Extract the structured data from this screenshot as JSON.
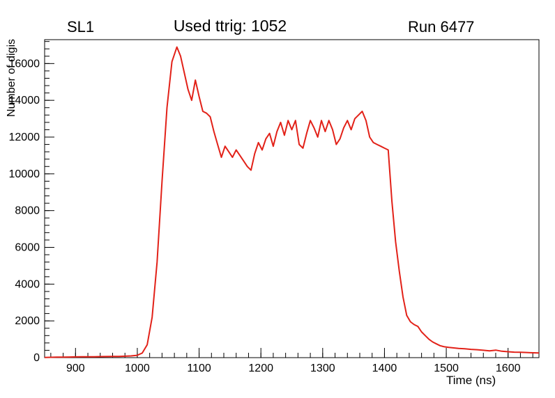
{
  "header": {
    "left": "SL1",
    "center": "Used ttrig: 1052",
    "right": "Run 6477"
  },
  "chart_data": {
    "type": "line",
    "title": "Used ttrig: 1052",
    "subtitle_left": "SL1",
    "subtitle_right": "Run 6477",
    "xlabel": "Time (ns)",
    "ylabel": "Number of digis",
    "xlim": [
      850,
      1650
    ],
    "ylim": [
      0,
      17300
    ],
    "x_major_ticks": [
      900,
      1000,
      1100,
      1200,
      1300,
      1400,
      1500,
      1600
    ],
    "y_major_ticks": [
      0,
      2000,
      4000,
      6000,
      8000,
      10000,
      12000,
      14000,
      16000
    ],
    "x_minor_step": 20,
    "y_minor_step": 400,
    "grid": false,
    "legend": "none",
    "line_color": "#e22118",
    "axis_color": "#000000",
    "series": [
      {
        "name": "digis",
        "points": [
          [
            850,
            10
          ],
          [
            860,
            20
          ],
          [
            870,
            25
          ],
          [
            880,
            30
          ],
          [
            890,
            35
          ],
          [
            900,
            40
          ],
          [
            910,
            45
          ],
          [
            920,
            50
          ],
          [
            930,
            50
          ],
          [
            940,
            55
          ],
          [
            950,
            60
          ],
          [
            960,
            65
          ],
          [
            970,
            70
          ],
          [
            980,
            80
          ],
          [
            990,
            95
          ],
          [
            1000,
            130
          ],
          [
            1008,
            250
          ],
          [
            1016,
            700
          ],
          [
            1024,
            2200
          ],
          [
            1032,
            5200
          ],
          [
            1040,
            9600
          ],
          [
            1048,
            13600
          ],
          [
            1056,
            16100
          ],
          [
            1064,
            16900
          ],
          [
            1070,
            16400
          ],
          [
            1076,
            15500
          ],
          [
            1082,
            14600
          ],
          [
            1088,
            14000
          ],
          [
            1094,
            15100
          ],
          [
            1100,
            14200
          ],
          [
            1106,
            13400
          ],
          [
            1112,
            13300
          ],
          [
            1118,
            13100
          ],
          [
            1124,
            12300
          ],
          [
            1130,
            11600
          ],
          [
            1136,
            10900
          ],
          [
            1142,
            11500
          ],
          [
            1148,
            11200
          ],
          [
            1154,
            10900
          ],
          [
            1160,
            11300
          ],
          [
            1166,
            11000
          ],
          [
            1172,
            10700
          ],
          [
            1178,
            10400
          ],
          [
            1184,
            10200
          ],
          [
            1190,
            11100
          ],
          [
            1196,
            11700
          ],
          [
            1202,
            11300
          ],
          [
            1208,
            11900
          ],
          [
            1214,
            12200
          ],
          [
            1220,
            11500
          ],
          [
            1226,
            12300
          ],
          [
            1232,
            12800
          ],
          [
            1238,
            12100
          ],
          [
            1244,
            12900
          ],
          [
            1250,
            12400
          ],
          [
            1256,
            12900
          ],
          [
            1262,
            11600
          ],
          [
            1268,
            11400
          ],
          [
            1274,
            12200
          ],
          [
            1280,
            12900
          ],
          [
            1286,
            12500
          ],
          [
            1292,
            12000
          ],
          [
            1298,
            12900
          ],
          [
            1304,
            12300
          ],
          [
            1310,
            12900
          ],
          [
            1316,
            12400
          ],
          [
            1322,
            11600
          ],
          [
            1328,
            11900
          ],
          [
            1334,
            12500
          ],
          [
            1340,
            12900
          ],
          [
            1346,
            12400
          ],
          [
            1352,
            13000
          ],
          [
            1358,
            13200
          ],
          [
            1364,
            13400
          ],
          [
            1370,
            12900
          ],
          [
            1376,
            12000
          ],
          [
            1382,
            11700
          ],
          [
            1388,
            11600
          ],
          [
            1394,
            11500
          ],
          [
            1400,
            11400
          ],
          [
            1406,
            11300
          ],
          [
            1412,
            8500
          ],
          [
            1418,
            6300
          ],
          [
            1424,
            4700
          ],
          [
            1430,
            3300
          ],
          [
            1436,
            2300
          ],
          [
            1442,
            1950
          ],
          [
            1448,
            1800
          ],
          [
            1454,
            1700
          ],
          [
            1460,
            1400
          ],
          [
            1466,
            1200
          ],
          [
            1472,
            1000
          ],
          [
            1478,
            850
          ],
          [
            1484,
            750
          ],
          [
            1490,
            650
          ],
          [
            1496,
            600
          ],
          [
            1504,
            560
          ],
          [
            1512,
            530
          ],
          [
            1520,
            500
          ],
          [
            1530,
            480
          ],
          [
            1540,
            450
          ],
          [
            1550,
            430
          ],
          [
            1560,
            400
          ],
          [
            1570,
            370
          ],
          [
            1580,
            410
          ],
          [
            1590,
            350
          ],
          [
            1600,
            320
          ],
          [
            1610,
            300
          ],
          [
            1620,
            290
          ],
          [
            1630,
            280
          ],
          [
            1640,
            265
          ],
          [
            1650,
            255
          ]
        ]
      }
    ]
  }
}
